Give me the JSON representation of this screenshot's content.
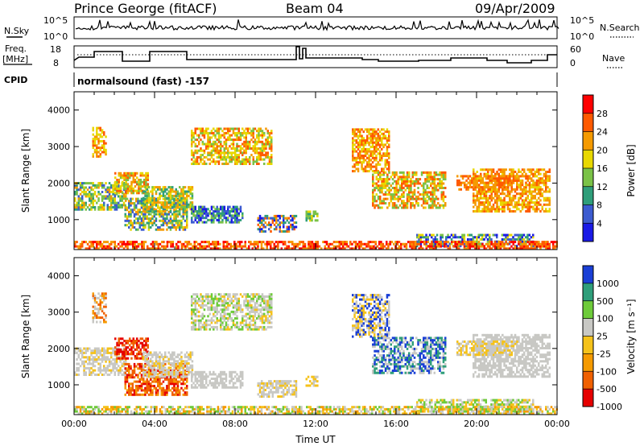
{
  "header": {
    "site": "Prince George (fitACF)",
    "beam": "Beam 04",
    "date": "09/Apr/2009"
  },
  "status_panel": {
    "nsky_label": "N.Sky",
    "nsearch_label": "N.Search",
    "freq_label_1": "Freq.",
    "freq_label_2": "[MHz]",
    "nave_label": "Nave",
    "cpid_label": "CPID",
    "cpid_text": "normalsound (fast) -157",
    "left_ticks_noise": [
      "10^5",
      "10^0"
    ],
    "right_ticks_noise": [
      "10^5",
      "10^0"
    ],
    "left_ticks_freq": [
      "18",
      "8"
    ],
    "right_ticks_nave": [
      "60",
      "0"
    ]
  },
  "chart_data": [
    {
      "type": "heatmap",
      "title": "",
      "ylabel": "Slant Range [km]",
      "xlabel": "",
      "xlim": [
        0,
        24
      ],
      "ylim": [
        180,
        4500
      ],
      "yticks": [
        "1000",
        "2000",
        "3000",
        "4000"
      ],
      "colorbar": {
        "label": "Power [dB]",
        "ticks": [
          "28",
          "24",
          "20",
          "16",
          "12",
          "8",
          "4"
        ],
        "colors": [
          "#ff0000",
          "#ff5a00",
          "#f59a00",
          "#e8d800",
          "#7ac247",
          "#2f9e7a",
          "#3c5bd0",
          "#1a1ae6"
        ]
      }
    },
    {
      "type": "heatmap",
      "title": "",
      "ylabel": "Slant Range [km]",
      "xlabel": "Time UT",
      "xlim": [
        0,
        24
      ],
      "ylim": [
        180,
        4500
      ],
      "yticks": [
        "1000",
        "2000",
        "3000",
        "4000"
      ],
      "xticks": [
        "00:00",
        "04:00",
        "08:00",
        "12:00",
        "16:00",
        "20:00",
        "00:00"
      ],
      "colorbar": {
        "label": "Velocity [m s⁻¹]",
        "ticks": [
          "1000",
          "500",
          "100",
          "25",
          "-25",
          "-100",
          "-500",
          "-1000"
        ],
        "colors": [
          "#1a3fd6",
          "#2f9e7a",
          "#6ecb3a",
          "#c8c8c4",
          "#f5c21a",
          "#f59a00",
          "#f06000",
          "#e60000"
        ]
      }
    }
  ]
}
